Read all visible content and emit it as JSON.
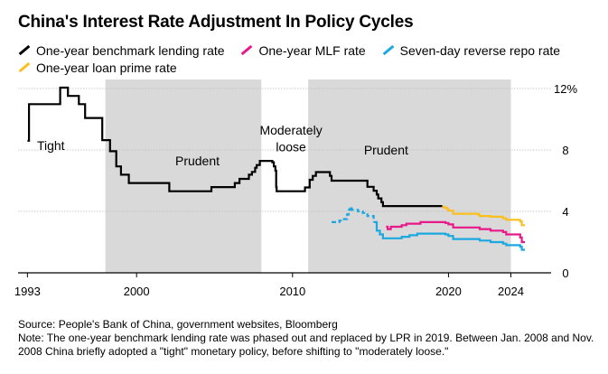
{
  "chart_data": {
    "type": "line",
    "title": "China's Interest Rate Adjustment In Policy Cycles",
    "xlim": [
      1992.4,
      2026.0
    ],
    "ylim": [
      0,
      12
    ],
    "yticks": [
      0,
      4,
      8,
      12
    ],
    "ytick_labels": [
      "0",
      "4",
      "8",
      "12%"
    ],
    "xticks": [
      1993,
      2000,
      2010,
      2020,
      2024
    ],
    "xtick_labels": [
      "1993",
      "2000",
      "2010",
      "2020",
      "2024"
    ],
    "y_axis_position": "right",
    "grid": true,
    "legend": "top-left",
    "shaded_periods": [
      {
        "start": 1998.0,
        "end": 2008.0
      },
      {
        "start": 2011.0,
        "end": 2024.0
      }
    ],
    "annotations": [
      {
        "text": "Tight",
        "x": 1994.5,
        "y": 8.0
      },
      {
        "text": "Prudent",
        "x": 2003.9,
        "y": 7.0
      },
      {
        "text": "Moderately",
        "x": 2009.9,
        "y": 9.0
      },
      {
        "text": "loose",
        "x": 2009.9,
        "y": 7.9
      },
      {
        "text": "Prudent",
        "x": 2016.0,
        "y": 7.7
      }
    ],
    "series": [
      {
        "name": "One-year benchmark lending rate",
        "color": "#000000",
        "step": true,
        "points": [
          [
            1993.0,
            8.6
          ],
          [
            1993.1,
            10.98
          ],
          [
            1994.5,
            10.98
          ],
          [
            1995.1,
            12.06
          ],
          [
            1995.6,
            11.52
          ],
          [
            1996.3,
            10.98
          ],
          [
            1996.7,
            10.08
          ],
          [
            1997.4,
            10.08
          ],
          [
            1997.8,
            8.64
          ],
          [
            1998.0,
            8.64
          ],
          [
            1998.3,
            7.92
          ],
          [
            1998.7,
            6.93
          ],
          [
            1999.0,
            6.39
          ],
          [
            1999.5,
            5.85
          ],
          [
            2002.1,
            5.31
          ],
          [
            2004.8,
            5.58
          ],
          [
            2006.3,
            5.85
          ],
          [
            2006.6,
            6.12
          ],
          [
            2007.2,
            6.39
          ],
          [
            2007.4,
            6.57
          ],
          [
            2007.6,
            6.84
          ],
          [
            2007.7,
            7.02
          ],
          [
            2007.9,
            7.29
          ],
          [
            2008.7,
            7.2
          ],
          [
            2008.8,
            6.93
          ],
          [
            2008.9,
            6.66
          ],
          [
            2008.95,
            5.58
          ],
          [
            2008.98,
            5.31
          ],
          [
            2010.8,
            5.56
          ],
          [
            2011.1,
            6.06
          ],
          [
            2011.3,
            6.31
          ],
          [
            2011.5,
            6.56
          ],
          [
            2012.4,
            6.31
          ],
          [
            2012.5,
            6.0
          ],
          [
            2014.8,
            5.6
          ],
          [
            2015.2,
            5.35
          ],
          [
            2015.4,
            5.1
          ],
          [
            2015.5,
            4.85
          ],
          [
            2015.7,
            4.6
          ],
          [
            2015.8,
            4.35
          ],
          [
            2019.6,
            4.35
          ]
        ]
      },
      {
        "name": "One-year MLF rate",
        "color": "#e8178a",
        "step": true,
        "points": [
          [
            2016.0,
            3.0
          ],
          [
            2016.1,
            2.85
          ],
          [
            2016.3,
            3.0
          ],
          [
            2017.0,
            3.1
          ],
          [
            2017.3,
            3.2
          ],
          [
            2018.2,
            3.3
          ],
          [
            2019.8,
            3.25
          ],
          [
            2020.0,
            3.15
          ],
          [
            2020.3,
            2.95
          ],
          [
            2022.0,
            2.85
          ],
          [
            2022.7,
            2.75
          ],
          [
            2023.5,
            2.65
          ],
          [
            2023.7,
            2.5
          ],
          [
            2024.6,
            2.3
          ],
          [
            2024.7,
            2.0
          ],
          [
            2024.9,
            2.0
          ]
        ]
      },
      {
        "name": "Seven-day reverse repo rate",
        "color": "#1ba8e0",
        "step": true,
        "dashed_until": 2015.3,
        "points": [
          [
            2012.5,
            3.3
          ],
          [
            2013.0,
            3.4
          ],
          [
            2013.3,
            3.5
          ],
          [
            2013.5,
            3.8
          ],
          [
            2013.6,
            4.1
          ],
          [
            2013.7,
            4.3
          ],
          [
            2013.8,
            4.1
          ],
          [
            2014.0,
            4.1
          ],
          [
            2014.2,
            4.0
          ],
          [
            2014.5,
            3.9
          ],
          [
            2014.8,
            3.7
          ],
          [
            2015.2,
            3.3
          ],
          [
            2015.4,
            2.75
          ],
          [
            2015.6,
            2.5
          ],
          [
            2015.8,
            2.25
          ],
          [
            2017.0,
            2.35
          ],
          [
            2017.5,
            2.45
          ],
          [
            2018.0,
            2.55
          ],
          [
            2018.5,
            2.55
          ],
          [
            2019.8,
            2.5
          ],
          [
            2020.0,
            2.4
          ],
          [
            2020.3,
            2.2
          ],
          [
            2022.0,
            2.1
          ],
          [
            2022.7,
            2.0
          ],
          [
            2023.5,
            1.9
          ],
          [
            2023.7,
            1.8
          ],
          [
            2024.6,
            1.7
          ],
          [
            2024.7,
            1.5
          ],
          [
            2024.9,
            1.5
          ]
        ]
      },
      {
        "name": "One-year loan prime rate",
        "color": "#fbbf1f",
        "step": true,
        "points": [
          [
            2019.6,
            4.31
          ],
          [
            2019.7,
            4.25
          ],
          [
            2019.9,
            4.15
          ],
          [
            2020.0,
            4.05
          ],
          [
            2020.3,
            3.85
          ],
          [
            2021.9,
            3.8
          ],
          [
            2022.0,
            3.7
          ],
          [
            2022.7,
            3.65
          ],
          [
            2023.5,
            3.55
          ],
          [
            2023.7,
            3.45
          ],
          [
            2024.6,
            3.35
          ],
          [
            2024.7,
            3.1
          ],
          [
            2024.9,
            3.1
          ]
        ]
      }
    ]
  },
  "footer": {
    "source": "Source: People's Bank of China, government websites, Bloomberg",
    "note": "Note: The one-year benchmark lending rate was phased out and replaced by LPR in 2019. Between Jan. 2008 and Nov. 2008 China briefly adopted a \"tight\" monetary policy, before shifting to \"moderately loose.\""
  }
}
